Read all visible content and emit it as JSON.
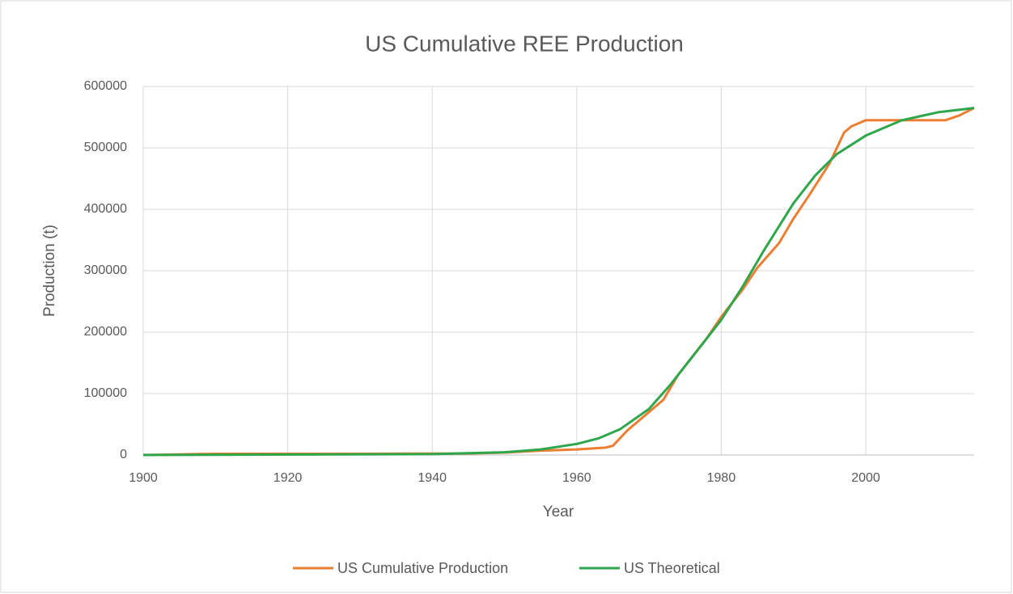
{
  "chart_data": {
    "type": "line",
    "title": "US Cumulative REE Production",
    "xlabel": "Year",
    "ylabel": "Production (t)",
    "xlim": [
      1900,
      2015
    ],
    "xticks": [
      1900,
      1920,
      1940,
      1960,
      1980,
      2000
    ],
    "ylim": [
      0,
      600000
    ],
    "yticks": [
      0,
      100000,
      200000,
      300000,
      400000,
      500000,
      600000
    ],
    "grid": true,
    "legend": "bottom",
    "series": [
      {
        "name": "US Cumulative Production",
        "color": "#ed7d31",
        "x": [
          1900,
          1905,
          1910,
          1930,
          1945,
          1950,
          1955,
          1960,
          1964,
          1965,
          1967,
          1970,
          1972,
          1974,
          1976,
          1978,
          1980,
          1983,
          1985,
          1988,
          1990,
          1992,
          1995,
          1997,
          1998,
          2000,
          2011,
          2013,
          2015
        ],
        "values": [
          0,
          1000,
          2000,
          2000,
          2500,
          4000,
          7000,
          9000,
          12000,
          15000,
          40000,
          70000,
          90000,
          130000,
          160000,
          190000,
          225000,
          270000,
          305000,
          345000,
          385000,
          420000,
          475000,
          525000,
          535000,
          545000,
          545000,
          553000,
          565000
        ]
      },
      {
        "name": "US Theoretical",
        "color": "#2ea64c",
        "x": [
          1900,
          1940,
          1950,
          1955,
          1960,
          1963,
          1966,
          1970,
          1973,
          1976,
          1980,
          1983,
          1986,
          1990,
          1993,
          1996,
          2000,
          2005,
          2010,
          2015
        ],
        "values": [
          0,
          1500,
          4500,
          9000,
          18000,
          27000,
          42000,
          75000,
          115000,
          160000,
          220000,
          275000,
          335000,
          410000,
          455000,
          490000,
          520000,
          545000,
          558000,
          565000
        ]
      }
    ]
  }
}
